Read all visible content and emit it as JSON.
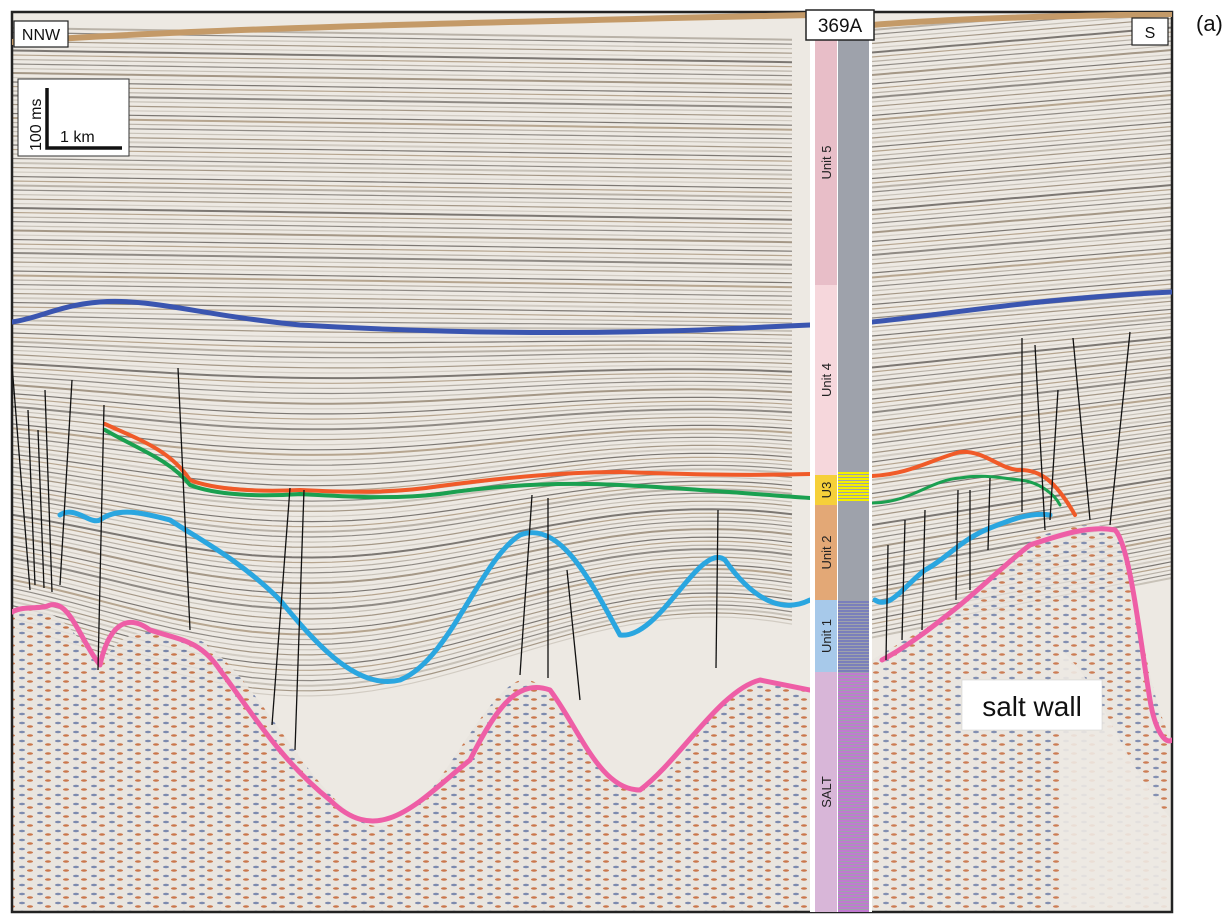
{
  "panel_label": "(a)",
  "orientation": {
    "left": "NNW",
    "right": "S"
  },
  "well": {
    "name": "369A"
  },
  "scale_bar": {
    "vertical": "100 ms",
    "horizontal": "1 km"
  },
  "units": [
    {
      "label": "Unit 5",
      "color": "#e8bec8"
    },
    {
      "label": "Unit 4",
      "color": "#f6d7dc"
    },
    {
      "label": "U3",
      "color": "#f6d03a"
    },
    {
      "label": "Unit 2",
      "color": "#e3a876"
    },
    {
      "label": "Unit 1",
      "color": "#a7c9ea"
    },
    {
      "label": "SALT",
      "color": "#d8b6d8"
    }
  ],
  "annotation": "salt wall",
  "horizon_colors": {
    "seabed": "#c49a68",
    "top_unit4": "#3a55b0",
    "top_u3": "#f05a28",
    "top_unit2": "#1aa050",
    "top_unit1": "#2aa6e0",
    "top_salt": "#ee5ea6"
  }
}
